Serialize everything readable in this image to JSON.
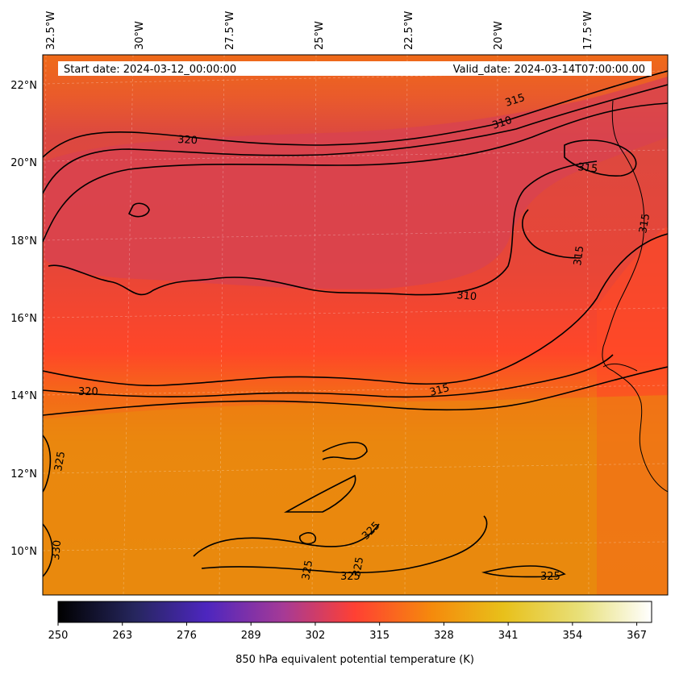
{
  "header": {
    "start_date": "Start date: 2024-03-12_00:00:00",
    "valid_date": "Valid_date: 2024-03-14T07:00:00.00"
  },
  "longitude_labels": [
    "32.5°W",
    "30°W",
    "27.5°W",
    "25°W",
    "22.5°W",
    "20°W",
    "17.5°W"
  ],
  "latitude_labels": [
    "22°N",
    "20°N",
    "18°N",
    "16°N",
    "14°N",
    "12°N",
    "10°N"
  ],
  "contour_labels": [
    "315",
    "310",
    "315",
    "320",
    "315",
    "315",
    "310",
    "315",
    "320",
    "325",
    "330",
    "325",
    "325",
    "325",
    "325",
    "325"
  ],
  "colorbar": {
    "label": "850 hPa equivalent potential temperature (K)",
    "ticks": [
      "250",
      "263",
      "276",
      "289",
      "302",
      "315",
      "328",
      "341",
      "354",
      "367"
    ],
    "min": 250,
    "max": 370,
    "colormap": "CMRmap"
  },
  "colors": {
    "cool_band": "#d9404a",
    "mid": "#ff4a2a",
    "warm": "#f07a12",
    "warmest": "#e8920a",
    "contour": "#000000"
  }
}
